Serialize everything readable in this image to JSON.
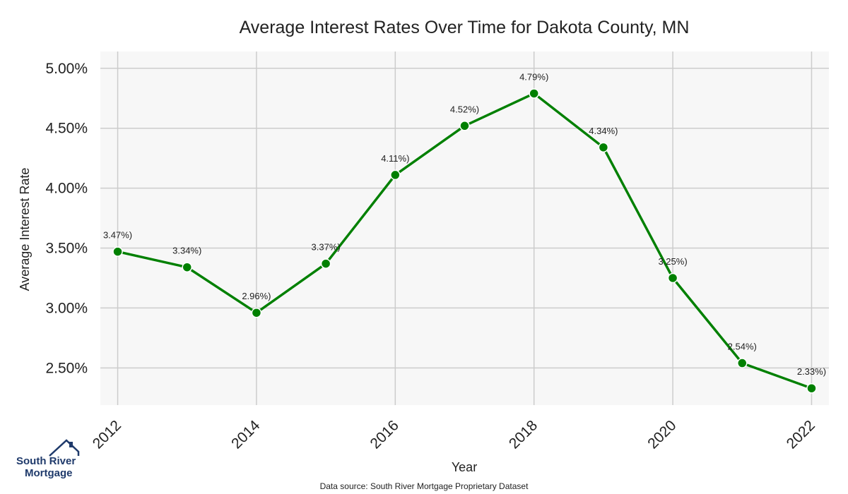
{
  "chart_data": {
    "type": "line",
    "title": "Average Interest Rates Over Time for Dakota County, MN",
    "xlabel": "Year",
    "ylabel": "Average Interest Rate",
    "x": [
      2012,
      2013,
      2014,
      2015,
      2016,
      2017,
      2018,
      2019,
      2020,
      2021,
      2022
    ],
    "y": [
      3.47,
      3.34,
      2.96,
      3.37,
      4.11,
      4.52,
      4.79,
      4.34,
      3.25,
      2.54,
      2.33
    ],
    "data_labels": [
      "3.47%)",
      "3.34%)",
      "2.96%)",
      "3.37%)",
      "4.11%)",
      "4.52%)",
      "4.79%)",
      "4.34%)",
      "3.25%)",
      "2.54%)",
      "2.33%)"
    ],
    "xticks": [
      2012,
      2014,
      2016,
      2018,
      2020,
      2022
    ],
    "yticks": [
      2.5,
      3.0,
      3.5,
      4.0,
      4.5,
      5.0
    ],
    "ytick_labels": [
      "2.50%",
      "3.00%",
      "3.50%",
      "4.00%",
      "4.50%",
      "5.00%"
    ],
    "xlim": [
      2011.75,
      2022.25
    ],
    "ylim": [
      2.19,
      5.14
    ],
    "grid": true,
    "line_color": "#008000",
    "plot_background": "#f7f7f7",
    "grid_color": "#cccccc"
  },
  "footer": {
    "source": "Data source: South River Mortgage Proprietary Dataset"
  },
  "logo": {
    "line1": "South River",
    "line2": "Mortgage"
  }
}
